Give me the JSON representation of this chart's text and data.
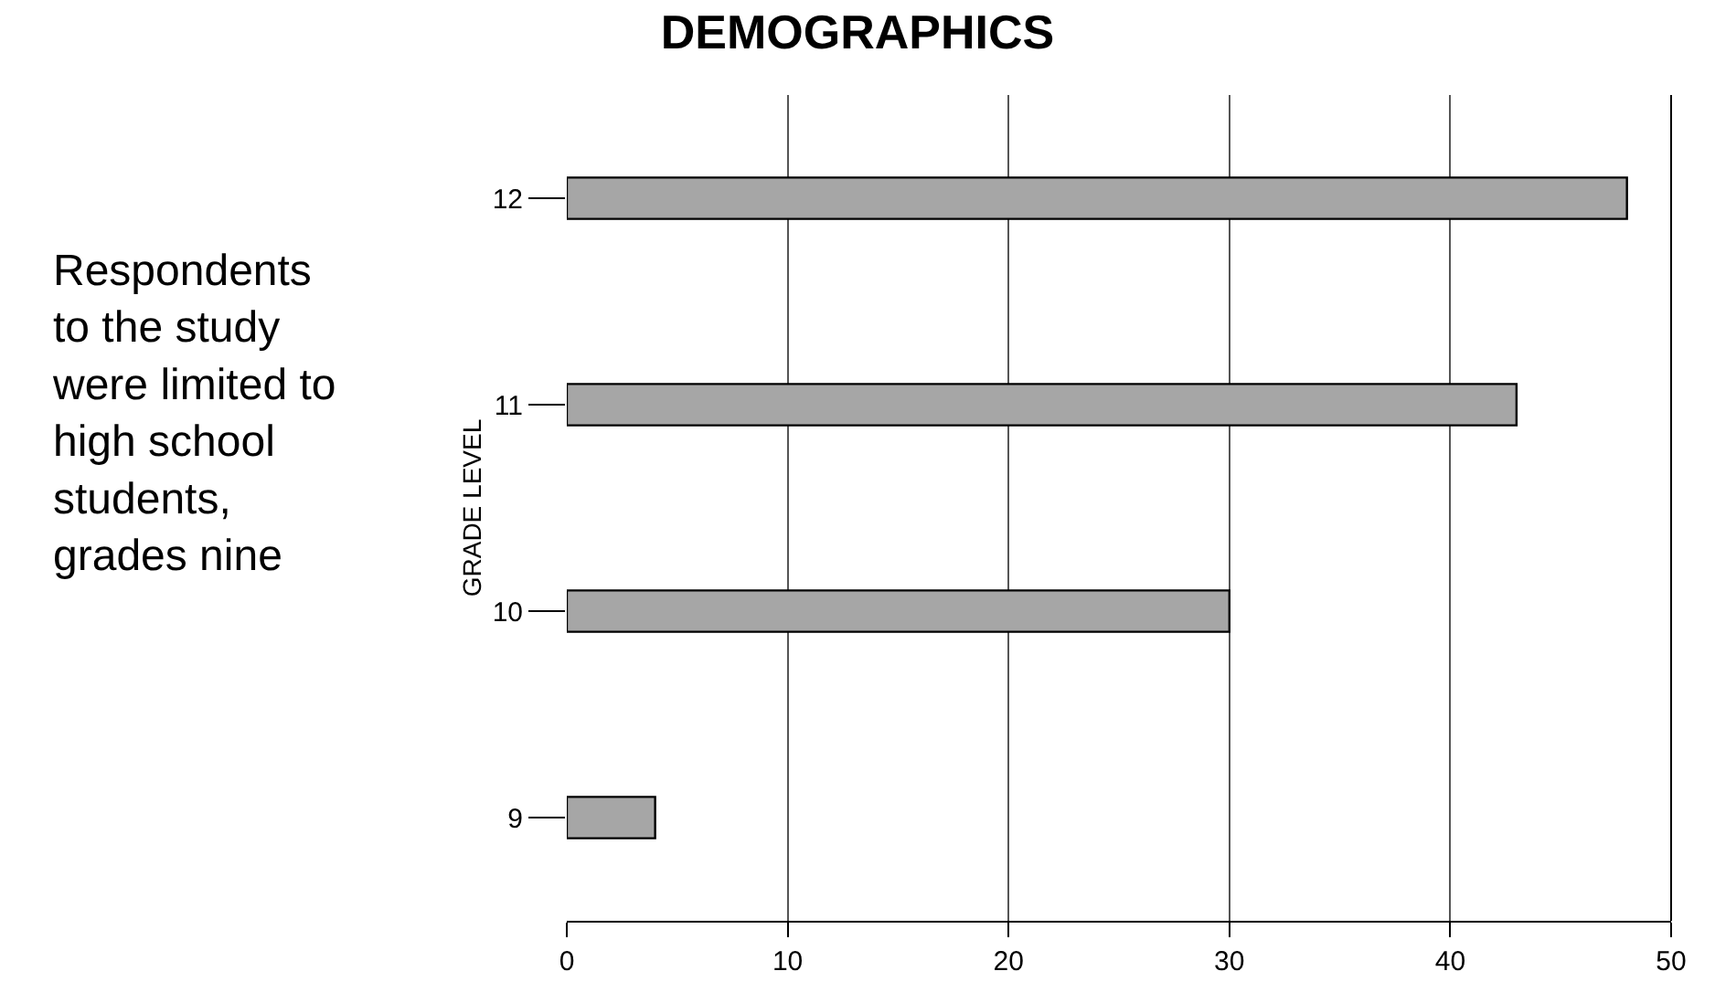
{
  "chart_data": {
    "type": "bar",
    "orientation": "horizontal",
    "title": "DEMOGRAPHICS",
    "ylabel": "GRADE LEVEL",
    "categories": [
      "12",
      "11",
      "10",
      "9"
    ],
    "values": [
      48,
      43,
      30,
      4
    ],
    "color": "#a6a6a6",
    "xlim": [
      0,
      50
    ],
    "xticks": [
      0,
      10,
      20,
      30,
      40,
      50
    ],
    "grid": "x",
    "legend": false,
    "annotations": [
      "Respondents\nto the study\nwere limited to\nhigh school\nstudents,\ngrades nine"
    ]
  }
}
